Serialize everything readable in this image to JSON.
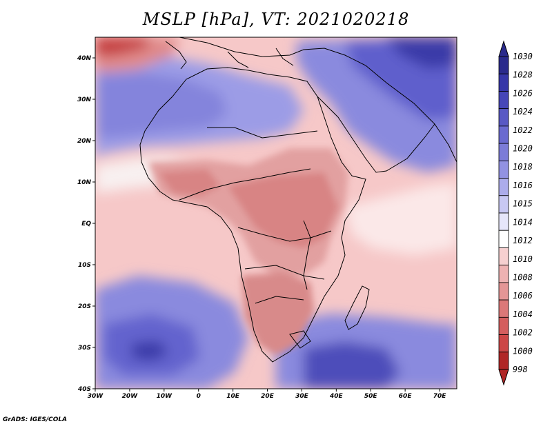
{
  "title": "MSLP [hPa], VT: 2021020218",
  "credit": "GrADS: IGES/COLA",
  "map": {
    "lon_range": [
      -30,
      75
    ],
    "lat_range": [
      -40,
      45
    ],
    "x_ticks": [
      "30W",
      "20W",
      "10W",
      "0",
      "10E",
      "20E",
      "30E",
      "40E",
      "50E",
      "60E",
      "70E"
    ],
    "y_ticks": [
      "40S",
      "30S",
      "20S",
      "10S",
      "EQ",
      "10N",
      "20N",
      "30N",
      "40N"
    ]
  },
  "colorbar": {
    "levels": [
      "1030",
      "1028",
      "1026",
      "1024",
      "1022",
      "1020",
      "1018",
      "1016",
      "1015",
      "1014",
      "1012",
      "1010",
      "1008",
      "1006",
      "1004",
      "1002",
      "1000",
      "998"
    ],
    "colors": [
      "#2a2a8c",
      "#3636a8",
      "#4646b8",
      "#5858c4",
      "#6a6ad0",
      "#7c7cd8",
      "#9292e2",
      "#acaceb",
      "#c8c8f3",
      "#e6e6fa",
      "#ffffff",
      "#f6d0d0",
      "#eeb2b2",
      "#e49696",
      "#dc7878",
      "#d45e5e",
      "#cc4646",
      "#b02626"
    ]
  }
}
